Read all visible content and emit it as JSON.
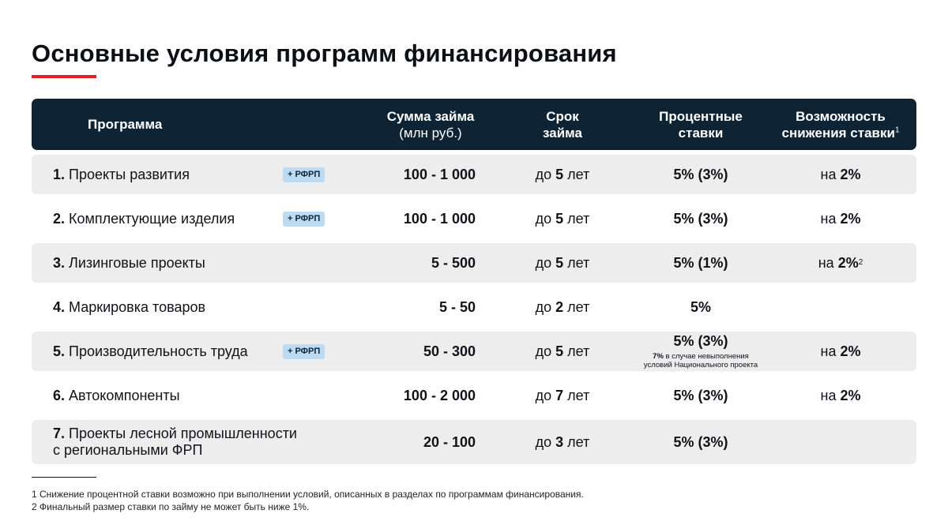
{
  "title": "Основные условия программ финансирования",
  "colors": {
    "accent": "#e31e24",
    "header_bg": "#0e2435",
    "row_shade": "#ededed",
    "badge_bg": "#bcdaf2"
  },
  "header": {
    "program": "Программа",
    "sum_line1": "Сумма займа",
    "sum_line2": "(млн руб.)",
    "term_line1": "Срок",
    "term_line2": "займа",
    "rate_line1": "Процентные",
    "rate_line2": "ставки",
    "reduce_line1": "Возможность",
    "reduce_line2": "снижения ставки",
    "reduce_sup": "1"
  },
  "term_prefix": "до",
  "term_suffix": "лет",
  "reduce_prefix": "на",
  "rows": [
    {
      "num": "1.",
      "name": "Проекты развития",
      "badge": "+ РФРП",
      "sum": "100 - 1 000",
      "term": "5",
      "rate": "5% (3%)",
      "reduce": "2%",
      "reduce_sup": ""
    },
    {
      "num": "2.",
      "name": "Комплектующие изделия",
      "badge": "+ РФРП",
      "sum": "100 - 1 000",
      "term": "5",
      "rate": "5% (3%)",
      "reduce": "2%",
      "reduce_sup": ""
    },
    {
      "num": "3.",
      "name": "Лизинговые проекты",
      "badge": "",
      "sum": "5 - 500",
      "term": "5",
      "rate": "5% (1%)",
      "reduce": "2%",
      "reduce_sup": "2"
    },
    {
      "num": "4.",
      "name": "Маркировка товаров",
      "badge": "",
      "sum": "5 - 50",
      "term": "2",
      "rate": "5%",
      "reduce": "",
      "reduce_sup": ""
    },
    {
      "num": "5.",
      "name": "Производительность труда",
      "badge": "+ РФРП",
      "sum": "50 - 300",
      "term": "5",
      "rate": "5% (3%)",
      "note_bold": "7%",
      "note_line1": " в случае невыполнения",
      "note_line2": "условий Национального проекта",
      "reduce": "2%",
      "reduce_sup": ""
    },
    {
      "num": "6.",
      "name": "Автокомпоненты",
      "badge": "",
      "sum": "100 - 2 000",
      "term": "7",
      "rate": "5% (3%)",
      "reduce": "2%",
      "reduce_sup": ""
    },
    {
      "num": "7.",
      "name_line1": "Проекты лесной промышленности",
      "name_line2": "с региональными ФРП",
      "badge": "",
      "sum": "20 - 100",
      "term": "3",
      "rate": "5% (3%)",
      "reduce": "",
      "reduce_sup": ""
    }
  ],
  "footnotes": [
    "1 Снижение процентной ставки возможно при выполнении условий, описанных в разделах по программам финансирования.",
    "2 Финальный размер ставки по займу не может быть ниже 1%."
  ]
}
